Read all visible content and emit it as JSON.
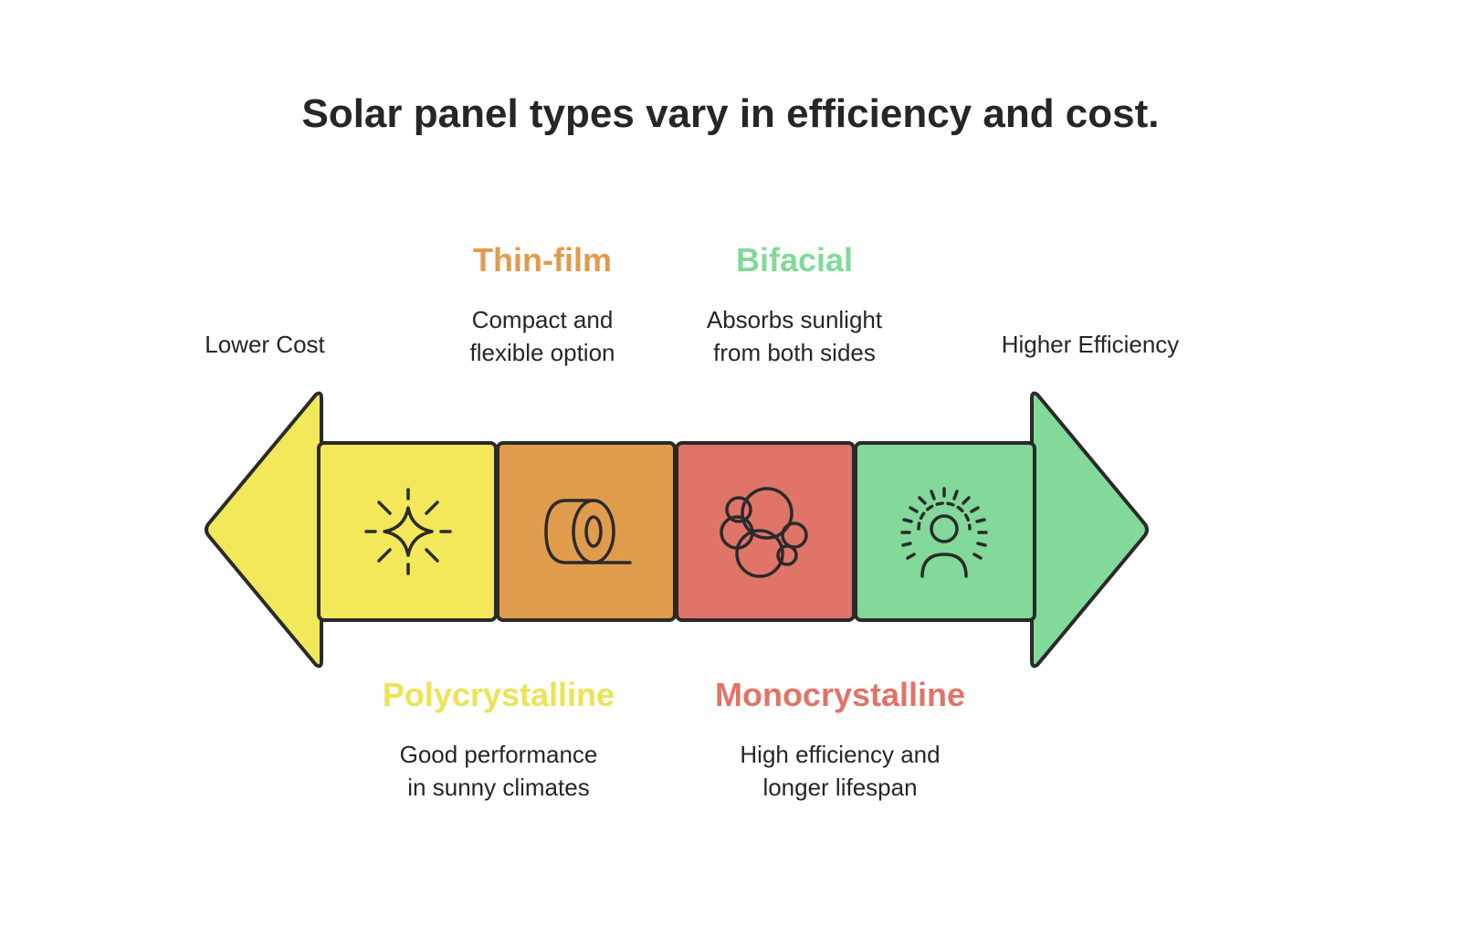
{
  "title": "Solar panel types vary in efficiency and cost.",
  "left_end": {
    "label": "Lower Cost",
    "color": "#f2e85a"
  },
  "right_end": {
    "label": "Higher Efficiency",
    "color": "#82d99a"
  },
  "types": [
    {
      "name": "Polycrystalline",
      "description_line1": "Good performance",
      "description_line2": "in sunny climates",
      "color": "#f2e85a",
      "text_color": "#ece356",
      "icon": "sparkle-icon"
    },
    {
      "name": "Thin-film",
      "description_line1": "Compact and",
      "description_line2": "flexible option",
      "color": "#e09c4d",
      "text_color": "#e09c4d",
      "icon": "film-roll-icon"
    },
    {
      "name": "Monocrystalline",
      "description_line1": "High efficiency and",
      "description_line2": "longer lifespan",
      "color": "#e07468",
      "text_color": "#e07468",
      "icon": "cell-cluster-icon"
    },
    {
      "name": "Bifacial",
      "description_line1": "Absorbs sunlight",
      "description_line2": "from both sides",
      "color": "#82d99a",
      "text_color": "#82d99a",
      "icon": "radiant-person-icon"
    }
  ]
}
